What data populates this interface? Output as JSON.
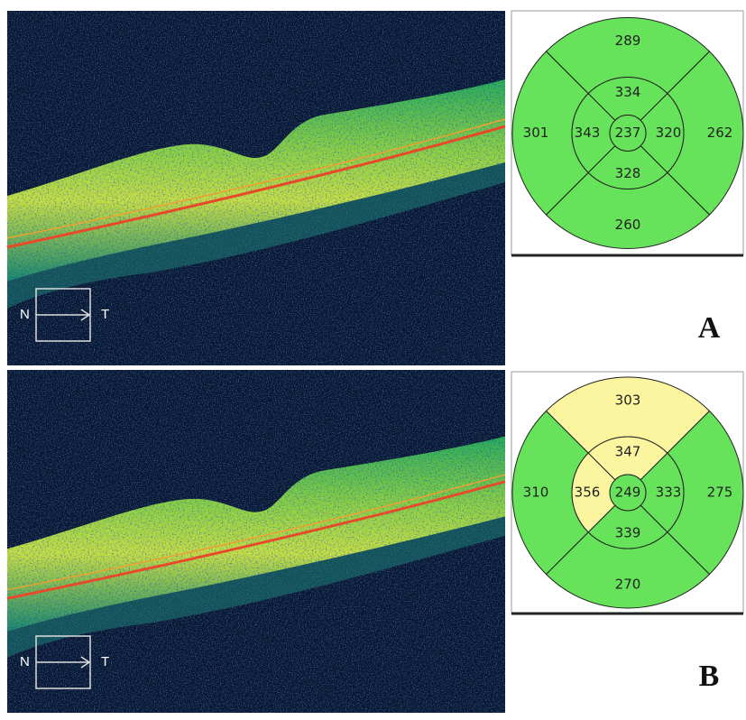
{
  "panels": [
    {
      "label": "A",
      "scan": {
        "left": "N",
        "right": "T"
      },
      "map": {
        "center": {
          "value": 237,
          "color": "#66e35a"
        },
        "inner": {
          "superior": {
            "value": 334,
            "color": "#66e35a"
          },
          "temporal": {
            "value": 320,
            "color": "#66e35a"
          },
          "inferior": {
            "value": 328,
            "color": "#66e35a"
          },
          "nasal": {
            "value": 343,
            "color": "#66e35a"
          }
        },
        "outer": {
          "superior": {
            "value": 289,
            "color": "#66e35a"
          },
          "temporal": {
            "value": 262,
            "color": "#66e35a"
          },
          "inferior": {
            "value": 260,
            "color": "#66e35a"
          },
          "nasal": {
            "value": 301,
            "color": "#66e35a"
          }
        }
      }
    },
    {
      "label": "B",
      "scan": {
        "left": "N",
        "right": "T"
      },
      "map": {
        "center": {
          "value": 249,
          "color": "#66e35a"
        },
        "inner": {
          "superior": {
            "value": 347,
            "color": "#fbf5a0"
          },
          "temporal": {
            "value": 333,
            "color": "#66e35a"
          },
          "inferior": {
            "value": 339,
            "color": "#66e35a"
          },
          "nasal": {
            "value": 356,
            "color": "#fbf5a0"
          }
        },
        "outer": {
          "superior": {
            "value": 303,
            "color": "#fbf5a0"
          },
          "temporal": {
            "value": 275,
            "color": "#66e35a"
          },
          "inferior": {
            "value": 270,
            "color": "#66e35a"
          },
          "nasal": {
            "value": 310,
            "color": "#66e35a"
          }
        }
      }
    }
  ]
}
